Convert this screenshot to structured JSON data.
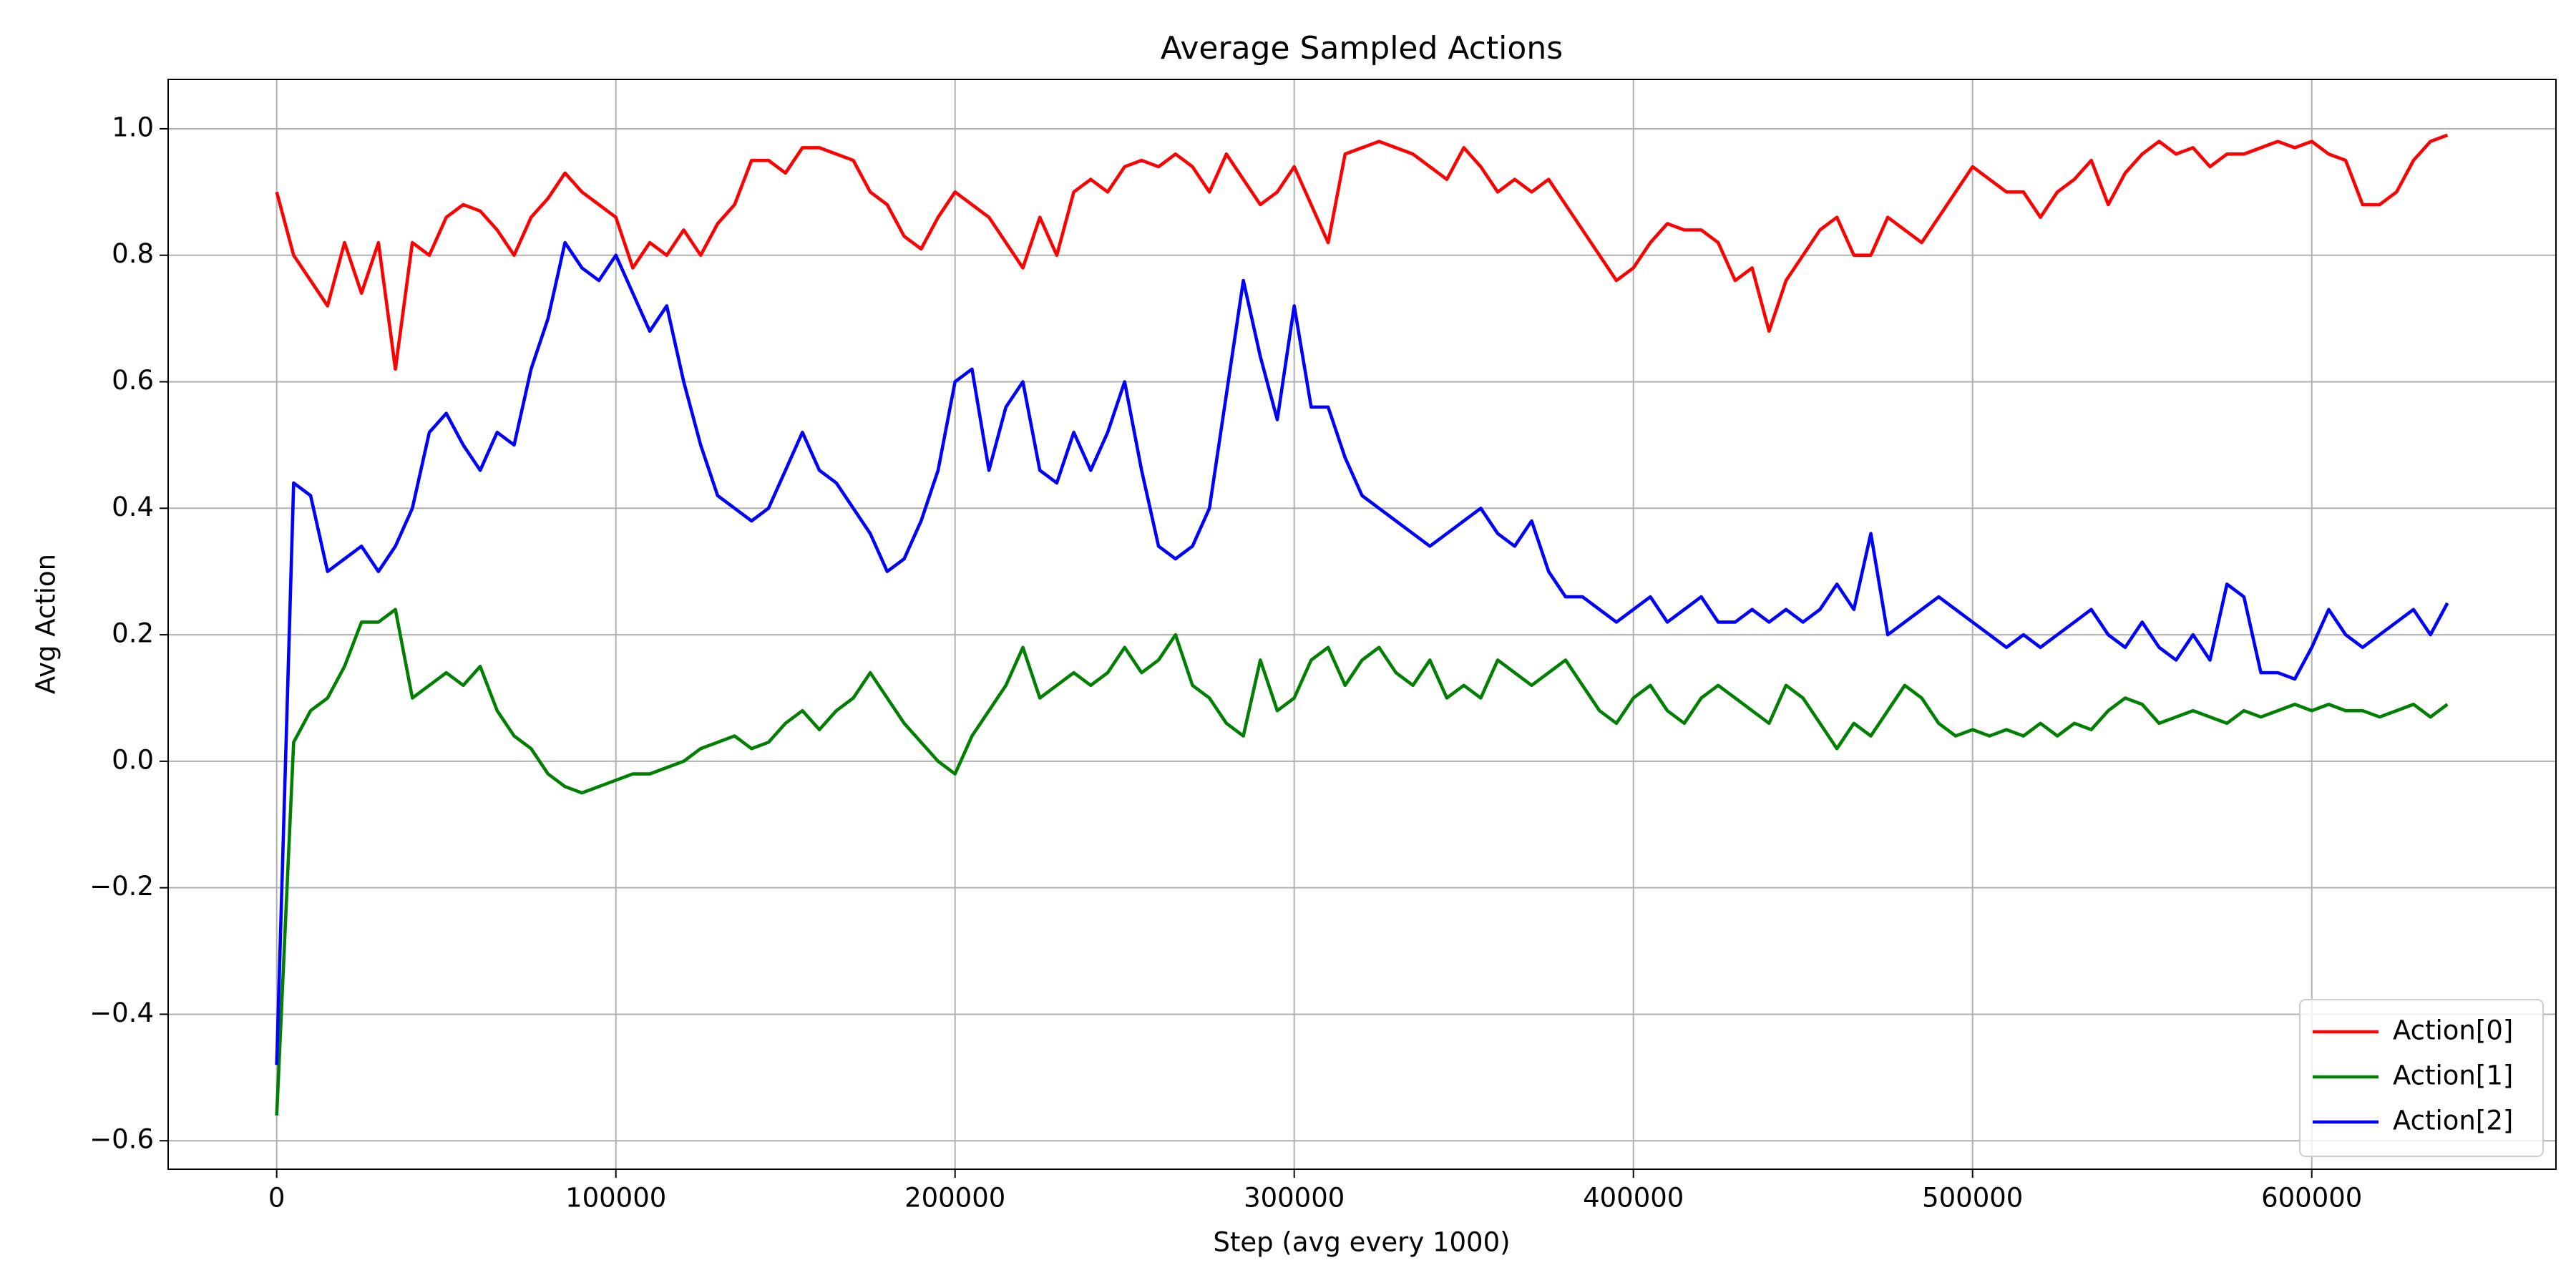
{
  "chart_data": {
    "type": "line",
    "title": "Average Sampled Actions",
    "x_label": "Step (avg every 1000)",
    "y_label": "Avg Action",
    "x": [
      0,
      5000,
      10000,
      15000,
      20000,
      25000,
      30000,
      35000,
      40000,
      45000,
      50000,
      55000,
      60000,
      65000,
      70000,
      75000,
      80000,
      85000,
      90000,
      95000,
      100000,
      105000,
      110000,
      115000,
      120000,
      125000,
      130000,
      135000,
      140000,
      145000,
      150000,
      155000,
      160000,
      165000,
      170000,
      175000,
      180000,
      185000,
      190000,
      195000,
      200000,
      205000,
      210000,
      215000,
      220000,
      225000,
      230000,
      235000,
      240000,
      245000,
      250000,
      255000,
      260000,
      265000,
      270000,
      275000,
      280000,
      285000,
      290000,
      295000,
      300000,
      305000,
      310000,
      315000,
      320000,
      325000,
      330000,
      335000,
      340000,
      345000,
      350000,
      355000,
      360000,
      365000,
      370000,
      375000,
      380000,
      385000,
      390000,
      395000,
      400000,
      405000,
      410000,
      415000,
      420000,
      425000,
      430000,
      435000,
      440000,
      445000,
      450000,
      455000,
      460000,
      465000,
      470000,
      475000,
      480000,
      485000,
      490000,
      495000,
      500000,
      505000,
      510000,
      515000,
      520000,
      525000,
      530000,
      535000,
      540000,
      545000,
      550000,
      555000,
      560000,
      565000,
      570000,
      575000,
      580000,
      585000,
      590000,
      595000,
      600000,
      605000,
      610000,
      615000,
      620000,
      625000,
      630000,
      635000,
      640000
    ],
    "series": [
      {
        "name": "Action[0]",
        "color": "#ff0000",
        "values": [
          0.9,
          0.8,
          0.76,
          0.72,
          0.82,
          0.74,
          0.82,
          0.62,
          0.82,
          0.8,
          0.86,
          0.88,
          0.87,
          0.84,
          0.8,
          0.86,
          0.89,
          0.93,
          0.9,
          0.88,
          0.86,
          0.78,
          0.82,
          0.8,
          0.84,
          0.8,
          0.85,
          0.88,
          0.95,
          0.95,
          0.93,
          0.97,
          0.97,
          0.96,
          0.95,
          0.9,
          0.88,
          0.83,
          0.81,
          0.86,
          0.9,
          0.88,
          0.86,
          0.82,
          0.78,
          0.86,
          0.8,
          0.9,
          0.92,
          0.9,
          0.94,
          0.95,
          0.94,
          0.96,
          0.94,
          0.9,
          0.96,
          0.92,
          0.88,
          0.9,
          0.94,
          0.88,
          0.82,
          0.96,
          0.97,
          0.98,
          0.97,
          0.96,
          0.94,
          0.92,
          0.97,
          0.94,
          0.9,
          0.92,
          0.9,
          0.92,
          0.88,
          0.84,
          0.8,
          0.76,
          0.78,
          0.82,
          0.85,
          0.84,
          0.84,
          0.82,
          0.76,
          0.78,
          0.68,
          0.76,
          0.8,
          0.84,
          0.86,
          0.8,
          0.8,
          0.86,
          0.84,
          0.82,
          0.86,
          0.9,
          0.94,
          0.92,
          0.9,
          0.9,
          0.86,
          0.9,
          0.92,
          0.95,
          0.88,
          0.93,
          0.96,
          0.98,
          0.96,
          0.97,
          0.94,
          0.96,
          0.96,
          0.97,
          0.98,
          0.97,
          0.98,
          0.96,
          0.95,
          0.88,
          0.88,
          0.9,
          0.95,
          0.98,
          0.99
        ]
      },
      {
        "name": "Action[1]",
        "color": "#008000",
        "values": [
          -0.56,
          0.03,
          0.08,
          0.1,
          0.15,
          0.22,
          0.22,
          0.24,
          0.1,
          0.12,
          0.14,
          0.12,
          0.15,
          0.08,
          0.04,
          0.02,
          -0.02,
          -0.04,
          -0.05,
          -0.04,
          -0.03,
          -0.02,
          -0.02,
          -0.01,
          0.0,
          0.02,
          0.03,
          0.04,
          0.02,
          0.03,
          0.06,
          0.08,
          0.05,
          0.08,
          0.1,
          0.14,
          0.1,
          0.06,
          0.03,
          0.0,
          -0.02,
          0.04,
          0.08,
          0.12,
          0.18,
          0.1,
          0.12,
          0.14,
          0.12,
          0.14,
          0.18,
          0.14,
          0.16,
          0.2,
          0.12,
          0.1,
          0.06,
          0.04,
          0.16,
          0.08,
          0.1,
          0.16,
          0.18,
          0.12,
          0.16,
          0.18,
          0.14,
          0.12,
          0.16,
          0.1,
          0.12,
          0.1,
          0.16,
          0.14,
          0.12,
          0.14,
          0.16,
          0.12,
          0.08,
          0.06,
          0.1,
          0.12,
          0.08,
          0.06,
          0.1,
          0.12,
          0.1,
          0.08,
          0.06,
          0.12,
          0.1,
          0.06,
          0.02,
          0.06,
          0.04,
          0.08,
          0.12,
          0.1,
          0.06,
          0.04,
          0.05,
          0.04,
          0.05,
          0.04,
          0.06,
          0.04,
          0.06,
          0.05,
          0.08,
          0.1,
          0.09,
          0.06,
          0.07,
          0.08,
          0.07,
          0.06,
          0.08,
          0.07,
          0.08,
          0.09,
          0.08,
          0.09,
          0.08,
          0.08,
          0.07,
          0.08,
          0.09,
          0.07,
          0.09
        ]
      },
      {
        "name": "Action[2]",
        "color": "#0000ff",
        "values": [
          -0.48,
          0.44,
          0.42,
          0.3,
          0.32,
          0.34,
          0.3,
          0.34,
          0.4,
          0.52,
          0.55,
          0.5,
          0.46,
          0.52,
          0.5,
          0.62,
          0.7,
          0.82,
          0.78,
          0.76,
          0.8,
          0.74,
          0.68,
          0.72,
          0.6,
          0.5,
          0.42,
          0.4,
          0.38,
          0.4,
          0.46,
          0.52,
          0.46,
          0.44,
          0.4,
          0.36,
          0.3,
          0.32,
          0.38,
          0.46,
          0.6,
          0.62,
          0.46,
          0.56,
          0.6,
          0.46,
          0.44,
          0.52,
          0.46,
          0.52,
          0.6,
          0.46,
          0.34,
          0.32,
          0.34,
          0.4,
          0.58,
          0.76,
          0.64,
          0.54,
          0.72,
          0.56,
          0.56,
          0.48,
          0.42,
          0.4,
          0.38,
          0.36,
          0.34,
          0.36,
          0.38,
          0.4,
          0.36,
          0.34,
          0.38,
          0.3,
          0.26,
          0.26,
          0.24,
          0.22,
          0.24,
          0.26,
          0.22,
          0.24,
          0.26,
          0.22,
          0.22,
          0.24,
          0.22,
          0.24,
          0.22,
          0.24,
          0.28,
          0.24,
          0.36,
          0.2,
          0.22,
          0.24,
          0.26,
          0.24,
          0.22,
          0.2,
          0.18,
          0.2,
          0.18,
          0.2,
          0.22,
          0.24,
          0.2,
          0.18,
          0.22,
          0.18,
          0.16,
          0.2,
          0.16,
          0.28,
          0.26,
          0.14,
          0.14,
          0.13,
          0.18,
          0.24,
          0.2,
          0.18,
          0.2,
          0.22,
          0.24,
          0.2,
          0.25
        ]
      }
    ],
    "xlim": [
      -32000,
      672000
    ],
    "ylim": [
      -0.645,
      1.078
    ],
    "xticks": [
      0,
      100000,
      200000,
      300000,
      400000,
      500000,
      600000
    ],
    "yticks": [
      {
        "value": -0.6,
        "label": "−0.6"
      },
      {
        "value": -0.4,
        "label": "−0.4"
      },
      {
        "value": -0.2,
        "label": "−0.2"
      },
      {
        "value": 0,
        "label": "0.0"
      },
      0.2,
      0.4,
      0.6,
      0.8,
      {
        "value": 1,
        "label": "1.0"
      }
    ],
    "grid": true,
    "legend": "lower right"
  }
}
